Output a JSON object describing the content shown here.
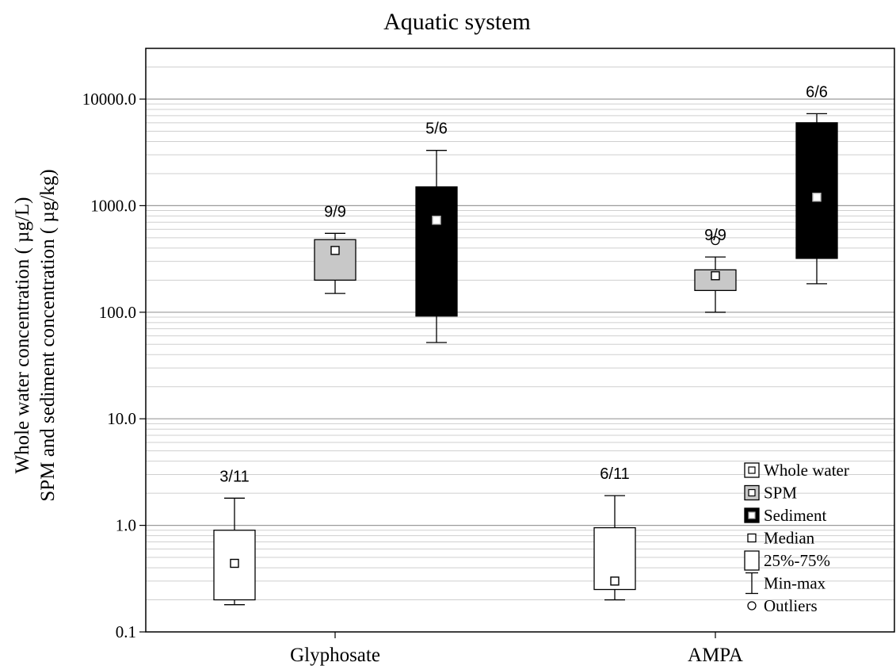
{
  "chart_data": {
    "type": "box",
    "title": "Aquatic system",
    "ylabel_line1": "Whole water concentration ( µg/L)",
    "ylabel_line2": "SPM and sediment concentration ( µg/kg)",
    "yscale": "log",
    "ylim": [
      0.1,
      30000
    ],
    "y_ticks": [
      0.1,
      1.0,
      10.0,
      100.0,
      1000.0,
      10000.0
    ],
    "y_tick_labels": [
      "0.1",
      "1.0",
      "10.0",
      "100.0",
      "1000.0",
      "10000.0"
    ],
    "grid": true,
    "categories": [
      "Glyphosate",
      "AMPA"
    ],
    "series": [
      {
        "name": "Whole water",
        "color": "#ffffff",
        "boxes": [
          {
            "category": "Glyphosate",
            "min": 0.18,
            "q1": 0.2,
            "median": 0.44,
            "q3": 0.9,
            "max": 1.8,
            "outliers": [],
            "label": "3/11"
          },
          {
            "category": "AMPA",
            "min": 0.2,
            "q1": 0.25,
            "median": 0.3,
            "q3": 0.95,
            "max": 1.9,
            "outliers": [],
            "label": "6/11"
          }
        ]
      },
      {
        "name": "SPM",
        "color": "#c8c8c8",
        "boxes": [
          {
            "category": "Glyphosate",
            "min": 150,
            "q1": 200,
            "median": 380,
            "q3": 480,
            "max": 550,
            "outliers": [],
            "label": "9/9"
          },
          {
            "category": "AMPA",
            "min": 100,
            "q1": 160,
            "median": 220,
            "q3": 250,
            "max": 330,
            "outliers": [
              470
            ],
            "label": "9/9"
          }
        ]
      },
      {
        "name": "Sediment",
        "color": "#000000",
        "boxes": [
          {
            "category": "Glyphosate",
            "min": 52,
            "q1": 92,
            "median": 730,
            "q3": 1500,
            "max": 3300,
            "outliers": [],
            "label": "5/6"
          },
          {
            "category": "AMPA",
            "min": 185,
            "q1": 320,
            "median": 1200,
            "q3": 6000,
            "max": 7300,
            "outliers": [],
            "label": "6/6"
          }
        ]
      }
    ],
    "legend": {
      "placement": "bottom-right",
      "items": [
        {
          "symbol": "box-white",
          "label": "Whole water"
        },
        {
          "symbol": "box-gray",
          "label": "SPM"
        },
        {
          "symbol": "box-black",
          "label": "Sediment"
        },
        {
          "symbol": "median",
          "label": "Median"
        },
        {
          "symbol": "range-box",
          "label": "25%-75%"
        },
        {
          "symbol": "whisker",
          "label": "Min-max"
        },
        {
          "symbol": "outlier",
          "label": "Outliers"
        }
      ]
    }
  }
}
